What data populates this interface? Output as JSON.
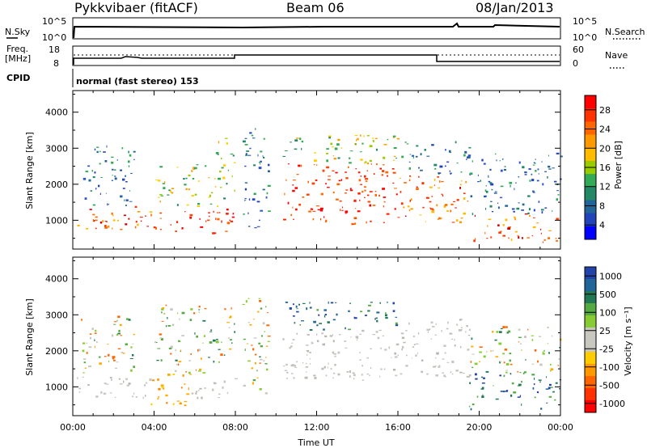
{
  "header": {
    "station": "Pykkvibaer (fitACF)",
    "beam": "Beam 06",
    "date": "08/Jan/2013"
  },
  "strip_panels": {
    "nsky": {
      "left_label": "N.Sky",
      "left_ticks": [
        "10^5",
        "10^0"
      ],
      "right_label": "N.Search",
      "right_ticks": [
        "10^5",
        "10^0"
      ]
    },
    "freq": {
      "left_label_1": "Freq.",
      "left_label_2": "[MHz]",
      "left_ticks": [
        "18",
        "8"
      ],
      "right_label": "Nave",
      "right_ticks": [
        "60",
        "0"
      ]
    },
    "cpid": {
      "label": "CPID",
      "text": "normal (fast stereo) 153"
    }
  },
  "chart_data": [
    {
      "type": "heatmap",
      "panel": "power",
      "ylabel": "Slant Range [km]",
      "xlabel": "",
      "xlim_hours": [
        0,
        24
      ],
      "ylim_km": [
        200,
        4600
      ],
      "y_ticks": [
        1000,
        2000,
        3000,
        4000
      ],
      "x_ticks": [
        "00:00",
        "04:00",
        "08:00",
        "12:00",
        "16:00",
        "20:00",
        "00:00"
      ],
      "colorbar": {
        "label": "Power [dB]",
        "ticks": [
          "28",
          "24",
          "20",
          "16",
          "12",
          "8",
          "4"
        ],
        "colors": [
          "#ff0000",
          "#ff3300",
          "#ff6600",
          "#ff9900",
          "#ffbb00",
          "#99cc00",
          "#33aa55",
          "#228866",
          "#226699",
          "#2244bb",
          "#0000ff"
        ]
      },
      "regions": [
        {
          "t0": 0.2,
          "t1": 3.8,
          "r0": 700,
          "r1": 1400,
          "level": "high"
        },
        {
          "t0": 3.8,
          "t1": 7.9,
          "r0": 650,
          "r1": 1350,
          "level": "very-high"
        },
        {
          "t0": 0.4,
          "t1": 3.0,
          "r0": 1400,
          "r1": 3100,
          "level": "low"
        },
        {
          "t0": 4.0,
          "t1": 7.5,
          "r0": 1400,
          "r1": 2600,
          "level": "medium"
        },
        {
          "t0": 7.0,
          "t1": 8.0,
          "r0": 1800,
          "r1": 3300,
          "level": "medium"
        },
        {
          "t0": 8.3,
          "t1": 9.6,
          "r0": 800,
          "r1": 3600,
          "level": "low"
        },
        {
          "t0": 10.3,
          "t1": 16.0,
          "r0": 900,
          "r1": 2600,
          "level": "very-high"
        },
        {
          "t0": 10.3,
          "t1": 16.0,
          "r0": 2600,
          "r1": 3400,
          "level": "medium"
        },
        {
          "t0": 16.0,
          "t1": 19.5,
          "r0": 900,
          "r1": 2300,
          "level": "high"
        },
        {
          "t0": 16.0,
          "t1": 19.5,
          "r0": 2300,
          "r1": 3200,
          "level": "low"
        },
        {
          "t0": 19.5,
          "t1": 24.0,
          "r0": 400,
          "r1": 1200,
          "level": "high"
        },
        {
          "t0": 19.5,
          "t1": 24.0,
          "r0": 1200,
          "r1": 2900,
          "level": "low"
        }
      ]
    },
    {
      "type": "heatmap",
      "panel": "velocity",
      "ylabel": "Slant Range [km]",
      "xlabel": "Time UT",
      "xlim_hours": [
        0,
        24
      ],
      "ylim_km": [
        200,
        4600
      ],
      "y_ticks": [
        1000,
        2000,
        3000,
        4000
      ],
      "x_ticks": [
        "00:00",
        "04:00",
        "08:00",
        "12:00",
        "16:00",
        "20:00",
        "00:00"
      ],
      "colorbar": {
        "label": "Velocity [m s⁻¹]",
        "ticks": [
          "1000",
          "500",
          "100",
          "25",
          "-25",
          "-100",
          "-500",
          "-1000"
        ],
        "colors": [
          "#2244aa",
          "#226699",
          "#227755",
          "#55aa44",
          "#88cc33",
          "#c8c8c0",
          "#c8c8c0",
          "#ffcc00",
          "#ff9900",
          "#ff6600",
          "#ff3300",
          "#ff0000"
        ]
      },
      "regions": [
        {
          "t0": 0.2,
          "t1": 3.8,
          "r0": 700,
          "r1": 1300,
          "level": "ground"
        },
        {
          "t0": 3.8,
          "t1": 5.8,
          "r0": 500,
          "r1": 1400,
          "level": "negative"
        },
        {
          "t0": 5.8,
          "t1": 8.0,
          "r0": 700,
          "r1": 1300,
          "level": "ground"
        },
        {
          "t0": 0.4,
          "t1": 3.0,
          "r0": 1400,
          "r1": 3000,
          "level": "mixed"
        },
        {
          "t0": 4.0,
          "t1": 8.0,
          "r0": 1400,
          "r1": 3300,
          "level": "mixed"
        },
        {
          "t0": 8.3,
          "t1": 9.6,
          "r0": 800,
          "r1": 3600,
          "level": "mixed"
        },
        {
          "t0": 10.3,
          "t1": 16.0,
          "r0": 1200,
          "r1": 2600,
          "level": "ground"
        },
        {
          "t0": 10.3,
          "t1": 16.0,
          "r0": 2600,
          "r1": 3400,
          "level": "positive"
        },
        {
          "t0": 16.0,
          "t1": 19.5,
          "r0": 1300,
          "r1": 2900,
          "level": "ground"
        },
        {
          "t0": 19.5,
          "t1": 24.0,
          "r0": 400,
          "r1": 1400,
          "level": "positive"
        },
        {
          "t0": 19.5,
          "t1": 24.0,
          "r0": 1400,
          "r1": 2700,
          "level": "mixed"
        }
      ]
    }
  ]
}
